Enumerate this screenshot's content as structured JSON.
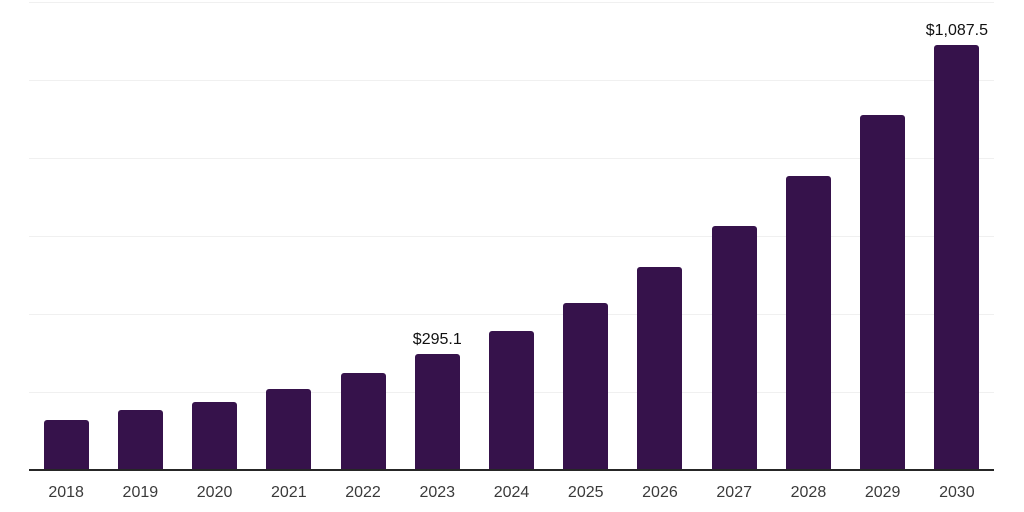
{
  "chart_data": {
    "type": "bar",
    "categories": [
      "2018",
      "2019",
      "2020",
      "2021",
      "2022",
      "2023",
      "2024",
      "2025",
      "2026",
      "2027",
      "2028",
      "2029",
      "2030"
    ],
    "values": [
      125,
      150,
      173,
      204,
      246,
      295.1,
      354,
      426,
      517,
      623,
      752,
      907,
      1087.5
    ],
    "annotations": [
      {
        "category": "2023",
        "text": "$295.1"
      },
      {
        "category": "2030",
        "text": "$1,087.5"
      }
    ],
    "ylim": [
      0,
      1200
    ],
    "grid_step": 200,
    "grid": true,
    "legend": false,
    "value_unit_prefix": "$"
  },
  "colors": {
    "bar": "#36124b",
    "gridline": "#f0f0f0",
    "axis": "#262626",
    "tick_label": "#3a3a3a",
    "data_label": "#111111",
    "background": "#ffffff"
  }
}
